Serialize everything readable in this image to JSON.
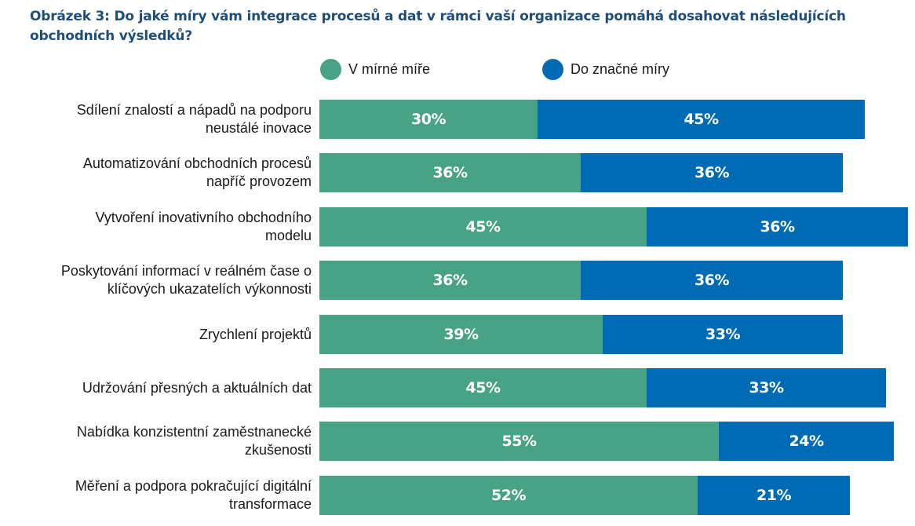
{
  "chart_data": {
    "type": "bar",
    "orientation": "horizontal",
    "stacked": true,
    "title": "Obrázek 3: Do jaké míry vám integrace procesů a dat v rámci vaší organizace pomáhá dosahovat následujících obchodních výsledků?",
    "xlabel": "",
    "ylabel": "",
    "legend_position": "top",
    "grid": false,
    "categories": [
      "Sdílení znalostí a nápadů na podporu neustálé inovace",
      "Automatizování obchodních procesů napříč provozem",
      "Vytvoření inovativního obchodního modelu",
      "Poskytování informací v reálném čase o klíčových ukazatelích výkonnosti",
      "Zrychlení projektů",
      "Udržování přesných a aktuálních dat",
      "Nabídka konzistentní zaměstnanecké zkušenosti",
      "Měření a podpora pokračující digitální transformace"
    ],
    "series": [
      {
        "name": "V mírné míře",
        "color": "#48a285",
        "values": [
          30,
          36,
          45,
          36,
          39,
          45,
          55,
          52
        ],
        "labels": [
          "30%",
          "36%",
          "45%",
          "36%",
          "39%",
          "45%",
          "55%",
          "52%"
        ]
      },
      {
        "name": "Do značné míry",
        "color": "#006bb5",
        "values": [
          45,
          36,
          36,
          36,
          33,
          33,
          24,
          21
        ],
        "labels": [
          "45%",
          "36%",
          "36%",
          "36%",
          "33%",
          "33%",
          "24%",
          "21%"
        ]
      }
    ],
    "xlim": [
      0,
      81
    ]
  },
  "legend": [
    {
      "label": "V mírné míře",
      "color": "#48a285"
    },
    {
      "label": "Do značné míry",
      "color": "#006bb5"
    }
  ]
}
